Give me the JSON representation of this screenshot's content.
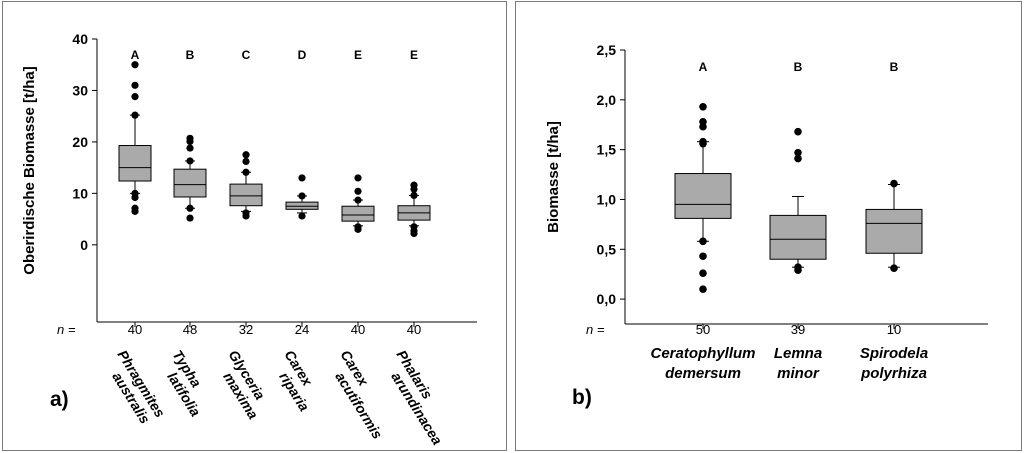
{
  "chart_data": [
    {
      "type": "boxplot",
      "panel_label": "a)",
      "ylabel": "Oberirdische Biomasse [t/ha]",
      "ylim": [
        -15,
        40
      ],
      "yticks": [
        "40",
        "30",
        "20",
        "10",
        "0"
      ],
      "ytick_values": [
        40,
        30,
        20,
        10,
        0
      ],
      "n_label": "n =",
      "categories": [
        {
          "name_lines": [
            "Phragmites",
            "australis"
          ],
          "n": "40",
          "letter": "A",
          "whisker_low": 10,
          "q1": 12.4,
          "median": 15,
          "q3": 19.3,
          "whisker_high": 25.2,
          "outliers": [
            35,
            31,
            28.8,
            25.2,
            10,
            9.2,
            7.1,
            6.5
          ]
        },
        {
          "name_lines": [
            "Typha",
            "latifolia"
          ],
          "n": "48",
          "letter": "B",
          "whisker_low": 7.1,
          "q1": 9.3,
          "median": 11.7,
          "q3": 14.7,
          "whisker_high": 16.3,
          "outliers": [
            20.7,
            20.1,
            18.8,
            16.3,
            7.1,
            5.2
          ]
        },
        {
          "name_lines": [
            "Glyceria",
            "maxima"
          ],
          "n": "32",
          "letter": "C",
          "whisker_low": 6.5,
          "q1": 7.6,
          "median": 9.5,
          "q3": 11.8,
          "whisker_high": 14.1,
          "outliers": [
            17.5,
            16.2,
            14.1,
            6.2,
            5.6
          ]
        },
        {
          "name_lines": [
            "Carex",
            "riparia"
          ],
          "n": "24",
          "letter": "D",
          "whisker_low": 6.2,
          "q1": 6.9,
          "median": 7.5,
          "q3": 8.3,
          "whisker_high": 9.5,
          "outliers": [
            13,
            9.5,
            5.6
          ]
        },
        {
          "name_lines": [
            "Carex",
            "acutiformis"
          ],
          "n": "40",
          "letter": "E",
          "whisker_low": 3.7,
          "q1": 4.6,
          "median": 5.8,
          "q3": 7.5,
          "whisker_high": 8.7,
          "outliers": [
            13,
            10.4,
            8.7,
            3.5,
            3.0
          ]
        },
        {
          "name_lines": [
            "Phalaris",
            "arundinacea"
          ],
          "n": "40",
          "letter": "E",
          "whisker_low": 3.7,
          "q1": 4.8,
          "median": 6.2,
          "q3": 7.6,
          "whisker_high": 9.6,
          "outliers": [
            11.6,
            10.8,
            9.6,
            3.5,
            2.7,
            2.2
          ]
        }
      ]
    },
    {
      "type": "boxplot",
      "panel_label": "b)",
      "ylabel": "Biomasse [t/ha]",
      "ylim": [
        -0.25,
        2.5
      ],
      "yticks": [
        "2,5",
        "2,0",
        "1,5",
        "1,0",
        "0,5",
        "0,0"
      ],
      "ytick_values": [
        2.5,
        2.0,
        1.5,
        1.0,
        0.5,
        0.0
      ],
      "n_label": "n =",
      "categories": [
        {
          "name_lines": [
            "Ceratophyllum",
            "demersum"
          ],
          "n": "50",
          "letter": "A",
          "whisker_low": 0.58,
          "q1": 0.81,
          "median": 0.95,
          "q3": 1.26,
          "whisker_high": 1.58,
          "outliers": [
            1.93,
            1.78,
            1.73,
            1.58,
            1.56,
            0.58,
            0.43,
            0.26,
            0.1
          ]
        },
        {
          "name_lines": [
            "Lemna",
            "minor"
          ],
          "n": "39",
          "letter": "B",
          "whisker_low": 0.32,
          "q1": 0.4,
          "median": 0.6,
          "q3": 0.84,
          "whisker_high": 1.03,
          "outliers": [
            1.68,
            1.47,
            1.41,
            0.32,
            0.29
          ]
        },
        {
          "name_lines": [
            "Spirodela",
            "polyrhiza"
          ],
          "n": "10",
          "letter": "B",
          "whisker_low": 0.32,
          "q1": 0.46,
          "median": 0.76,
          "q3": 0.9,
          "whisker_high": 1.15,
          "outliers": [
            1.16,
            0.31
          ]
        }
      ]
    }
  ]
}
